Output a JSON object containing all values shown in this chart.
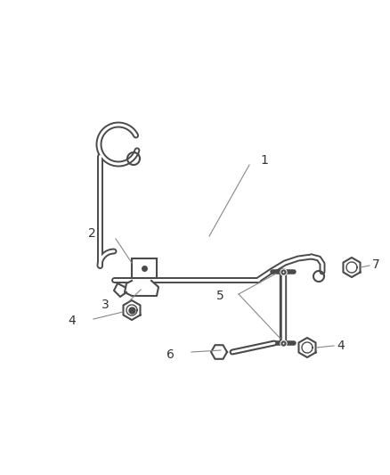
{
  "background_color": "#ffffff",
  "line_color": "#4a4a4a",
  "line_width": 1.6,
  "label_color": "#333333",
  "label_fontsize": 10,
  "fig_width": 4.38,
  "fig_height": 5.33,
  "dpi": 100
}
